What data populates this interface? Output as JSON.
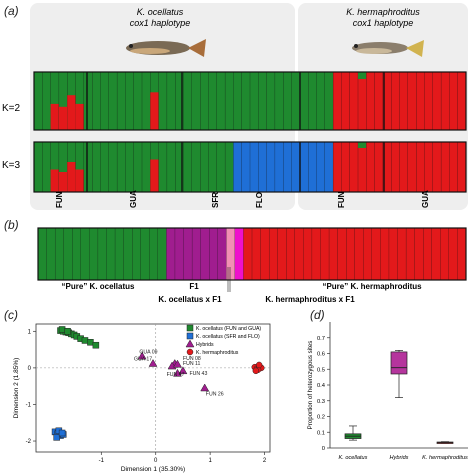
{
  "panel_labels": {
    "a": "(a)",
    "b": "(b)",
    "c": "(c)",
    "d": "(d)"
  },
  "colors": {
    "green": "#1f8a2f",
    "red": "#e3191b",
    "blue": "#1f6fd6",
    "purple": "#a01d8f",
    "pink": "#f28fb4",
    "magenta": "#ee11cc",
    "header_bg": "#eeeeee",
    "box_purple": "#b5359d"
  },
  "panel_a": {
    "header_left": [
      "K. ocellatus",
      "cox1 haplotype"
    ],
    "header_right": [
      "K. hermaphroditus",
      "cox1 haplotype"
    ],
    "k_labels": [
      "K=2",
      "K=3"
    ],
    "group_labels": [
      "FUN",
      "GUA",
      "SFR",
      "FLO",
      "FUN",
      "GUA"
    ]
  },
  "panel_b": {
    "labels": [
      "“Pure” K. ocellatus",
      "F1",
      "“Pure” K. hermaphroditus",
      "K. ocellatus x F1",
      "K. hermaphroditus x F1"
    ]
  },
  "chart_data": [
    {
      "type": "scatter",
      "panel": "c",
      "xlabel": "Dimension 1 (35.30%)",
      "ylabel": "Dimension 2 (1.85%)",
      "xlim": [
        -2.2,
        2.1
      ],
      "ylim": [
        -2.3,
        1.2
      ],
      "xticks": [
        -1,
        0,
        1,
        2
      ],
      "yticks": [
        -2,
        -1,
        0,
        1
      ],
      "legend": {
        "placement": "top-right",
        "entries": [
          {
            "label": "K. ocellatus (FUN and GUA)",
            "marker": "square",
            "color": "#1f8a2f"
          },
          {
            "label": "K. ocellatus (SFR and FLO)",
            "marker": "square",
            "color": "#1f6fd6"
          },
          {
            "label": "Hybrids",
            "marker": "triangle",
            "color": "#a01d8f"
          },
          {
            "label": "K. hermaphroditus",
            "marker": "circle",
            "color": "#e3191b"
          }
        ]
      },
      "series": [
        {
          "name": "K. ocellatus (FUN and GUA)",
          "points": [
            [
              -1.75,
              1.02
            ],
            [
              -1.7,
              1.0
            ],
            [
              -1.65,
              0.98
            ],
            [
              -1.6,
              0.96
            ],
            [
              -1.55,
              0.93
            ],
            [
              -1.5,
              0.9
            ],
            [
              -1.45,
              0.86
            ],
            [
              -1.38,
              0.8
            ],
            [
              -1.3,
              0.75
            ],
            [
              -1.2,
              0.7
            ],
            [
              -1.1,
              0.62
            ],
            [
              -1.72,
              1.05
            ],
            [
              -1.62,
              1.0
            ]
          ]
        },
        {
          "name": "K. ocellatus (SFR and FLO)",
          "points": [
            [
              -1.85,
              -1.75
            ],
            [
              -1.8,
              -1.8
            ],
            [
              -1.75,
              -1.85
            ],
            [
              -1.7,
              -1.82
            ],
            [
              -1.78,
              -1.72
            ],
            [
              -1.82,
              -1.9
            ],
            [
              -1.72,
              -1.78
            ]
          ]
        },
        {
          "name": "Hybrids",
          "points": [
            [
              -0.25,
              0.32
            ],
            [
              -0.05,
              0.12
            ],
            [
              0.35,
              0.12
            ],
            [
              0.3,
              0.05
            ],
            [
              0.4,
              0.1
            ],
            [
              0.4,
              -0.15
            ],
            [
              0.5,
              -0.08
            ],
            [
              0.9,
              -0.55
            ]
          ]
        },
        {
          "name": "K. hermaphroditus",
          "points": [
            [
              1.82,
              0.02
            ],
            [
              1.86,
              -0.02
            ],
            [
              1.9,
              0.04
            ],
            [
              1.94,
              0.0
            ],
            [
              1.88,
              -0.05
            ],
            [
              1.84,
              -0.08
            ],
            [
              1.9,
              0.08
            ]
          ]
        }
      ],
      "annotations": [
        {
          "text": "GUA 09",
          "x": -0.3,
          "y": 0.4
        },
        {
          "text": "GUA 17",
          "x": -0.4,
          "y": 0.2
        },
        {
          "text": "FUN 08",
          "x": 0.5,
          "y": 0.22
        },
        {
          "text": "FUN 11",
          "x": 0.5,
          "y": 0.08
        },
        {
          "text": "FUN 47",
          "x": 0.2,
          "y": -0.22
        },
        {
          "text": "FUN 43",
          "x": 0.62,
          "y": -0.2
        },
        {
          "text": "FUN 26",
          "x": 0.92,
          "y": -0.75
        }
      ]
    },
    {
      "type": "box",
      "panel": "d",
      "ylabel": "Proportion of heterozygous sites",
      "ylim": [
        0,
        0.8
      ],
      "yticks": [
        0,
        0.1,
        0.2,
        0.3,
        0.4,
        0.5,
        0.6,
        0.7
      ],
      "categories": [
        "K. ocellatus",
        "Hybrids",
        "K. hermaphroditus"
      ],
      "boxes": [
        {
          "category": "K. ocellatus",
          "min": 0.05,
          "q1": 0.06,
          "median": 0.075,
          "q3": 0.09,
          "max": 0.14,
          "color": "#1f8a2f"
        },
        {
          "category": "Hybrids",
          "min": 0.32,
          "q1": 0.47,
          "median": 0.51,
          "q3": 0.61,
          "max": 0.62,
          "color": "#b5359d"
        },
        {
          "category": "K. hermaphroditus",
          "min": 0.03,
          "q1": 0.032,
          "median": 0.035,
          "q3": 0.038,
          "max": 0.04,
          "color": "#e3191b"
        }
      ]
    }
  ]
}
